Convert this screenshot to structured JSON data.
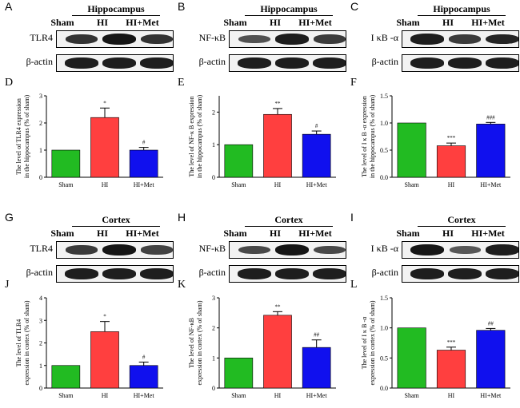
{
  "colors": {
    "sham": "#22bb22",
    "hi": "#ff3f3f",
    "hi_met": "#1010ee",
    "band": "#0e0e0e"
  },
  "blots": [
    {
      "letter": "A",
      "region": "Hippocampus",
      "lanes": [
        "Sham",
        "HI",
        "HI+Met"
      ],
      "rows": [
        {
          "protein": "TLR4",
          "intensities": [
            0.75,
            0.95,
            0.75
          ]
        },
        {
          "protein": "β-actin",
          "intensities": [
            0.9,
            0.9,
            0.9
          ]
        }
      ]
    },
    {
      "letter": "B",
      "region": "Hippocampus",
      "lanes": [
        "Sham",
        "HI",
        "HI+Met"
      ],
      "rows": [
        {
          "protein": "NF-κB",
          "intensities": [
            0.55,
            0.9,
            0.7
          ]
        },
        {
          "protein": "β-actin",
          "intensities": [
            0.9,
            0.9,
            0.9
          ]
        }
      ]
    },
    {
      "letter": "C",
      "region": "Hippocampus",
      "lanes": [
        "Sham",
        "HI",
        "HI+Met"
      ],
      "rows": [
        {
          "protein": "I κB -α",
          "intensities": [
            0.9,
            0.7,
            0.85
          ]
        },
        {
          "protein": "β-actin",
          "intensities": [
            0.9,
            0.9,
            0.9
          ]
        }
      ]
    },
    {
      "letter": "G",
      "region": "Cortex",
      "lanes": [
        "Sham",
        "HI",
        "HI+Met"
      ],
      "rows": [
        {
          "protein": "TLR4",
          "intensities": [
            0.7,
            0.95,
            0.65
          ]
        },
        {
          "protein": "β-actin",
          "intensities": [
            0.9,
            0.9,
            0.9
          ]
        }
      ]
    },
    {
      "letter": "H",
      "region": "Cortex",
      "lanes": [
        "Sham",
        "HI",
        "HI+Met"
      ],
      "rows": [
        {
          "protein": "NF-κB",
          "intensities": [
            0.6,
            0.95,
            0.6
          ]
        },
        {
          "protein": "β-actin",
          "intensities": [
            0.9,
            0.9,
            0.9
          ]
        }
      ]
    },
    {
      "letter": "I",
      "region": "Cortex",
      "lanes": [
        "Sham",
        "HI",
        "HI+Met"
      ],
      "rows": [
        {
          "protein": "I κB -α",
          "intensities": [
            0.95,
            0.5,
            0.9
          ]
        },
        {
          "protein": "β-actin",
          "intensities": [
            0.9,
            0.9,
            0.9
          ]
        }
      ]
    }
  ],
  "chart_data": [
    {
      "letter": "D",
      "type": "bar",
      "categories": [
        "Sham",
        "HI",
        "HI+Met"
      ],
      "values": [
        1.0,
        2.2,
        1.0
      ],
      "errors": [
        0,
        0.35,
        0.1
      ],
      "significance": [
        "",
        "*",
        "#"
      ],
      "ylabel": [
        "The level of TLR4 expression",
        "in the hippocampus (% of sham)"
      ],
      "ylim": [
        0,
        3
      ],
      "yticks": [
        "0",
        "1",
        "2",
        "3"
      ],
      "ytick_values": [
        0,
        1,
        2,
        3
      ]
    },
    {
      "letter": "E",
      "type": "bar",
      "categories": [
        "Sham",
        "HI",
        "HI+Met"
      ],
      "values": [
        1.0,
        1.93,
        1.32
      ],
      "errors": [
        0,
        0.18,
        0.1
      ],
      "significance": [
        "",
        "**",
        "#"
      ],
      "ylabel": [
        "The level of NF-κ B expression",
        "in the hippocampus (% of sham)"
      ],
      "ylim": [
        0,
        2.5
      ],
      "yticks": [
        "0",
        "1",
        "2"
      ],
      "ytick_values": [
        0,
        1,
        2
      ]
    },
    {
      "letter": "F",
      "type": "bar",
      "categories": [
        "Sham",
        "HI",
        "HI+Met"
      ],
      "values": [
        1.0,
        0.58,
        0.98
      ],
      "errors": [
        0,
        0.05,
        0.03
      ],
      "significance": [
        "",
        "***",
        "###"
      ],
      "ylabel": [
        "The level of I κ B -α expression",
        "in the hippocampus (% of sham)"
      ],
      "ylim": [
        0,
        1.5
      ],
      "yticks": [
        "0.0",
        "0.5",
        "1.0",
        "1.5"
      ],
      "ytick_values": [
        0,
        0.5,
        1.0,
        1.5
      ]
    },
    {
      "letter": "J",
      "type": "bar",
      "categories": [
        "Sham",
        "HI",
        "HI+Met"
      ],
      "values": [
        1.0,
        2.5,
        1.0
      ],
      "errors": [
        0,
        0.45,
        0.15
      ],
      "significance": [
        "",
        "*",
        "#"
      ],
      "ylabel": [
        "The level of TLR4",
        "expression in cortex (% of sham)"
      ],
      "ylim": [
        0,
        4
      ],
      "yticks": [
        "0",
        "1",
        "2",
        "3",
        "4"
      ],
      "ytick_values": [
        0,
        1,
        2,
        3,
        4
      ]
    },
    {
      "letter": "K",
      "type": "bar",
      "categories": [
        "Sham",
        "HI",
        "HI+Met"
      ],
      "values": [
        1.0,
        2.42,
        1.35
      ],
      "errors": [
        0,
        0.12,
        0.25
      ],
      "significance": [
        "",
        "**",
        "##"
      ],
      "ylabel": [
        "The level of NF-κB",
        "expression in cortex (% of sham)"
      ],
      "ylim": [
        0,
        3
      ],
      "yticks": [
        "0",
        "1",
        "2",
        "3"
      ],
      "ytick_values": [
        0,
        1,
        2,
        3
      ]
    },
    {
      "letter": "L",
      "type": "bar",
      "categories": [
        "Sham",
        "HI",
        "HI+Met"
      ],
      "values": [
        1.0,
        0.63,
        0.96
      ],
      "errors": [
        0,
        0.05,
        0.03
      ],
      "significance": [
        "",
        "***",
        "##"
      ],
      "ylabel": [
        "The level of I κ B -α",
        "expression in cortex (% of sham)"
      ],
      "ylim": [
        0,
        1.5
      ],
      "yticks": [
        "0.0",
        "0.5",
        "1.0",
        "1.5"
      ],
      "ytick_values": [
        0,
        0.5,
        1.0,
        1.5
      ]
    }
  ]
}
